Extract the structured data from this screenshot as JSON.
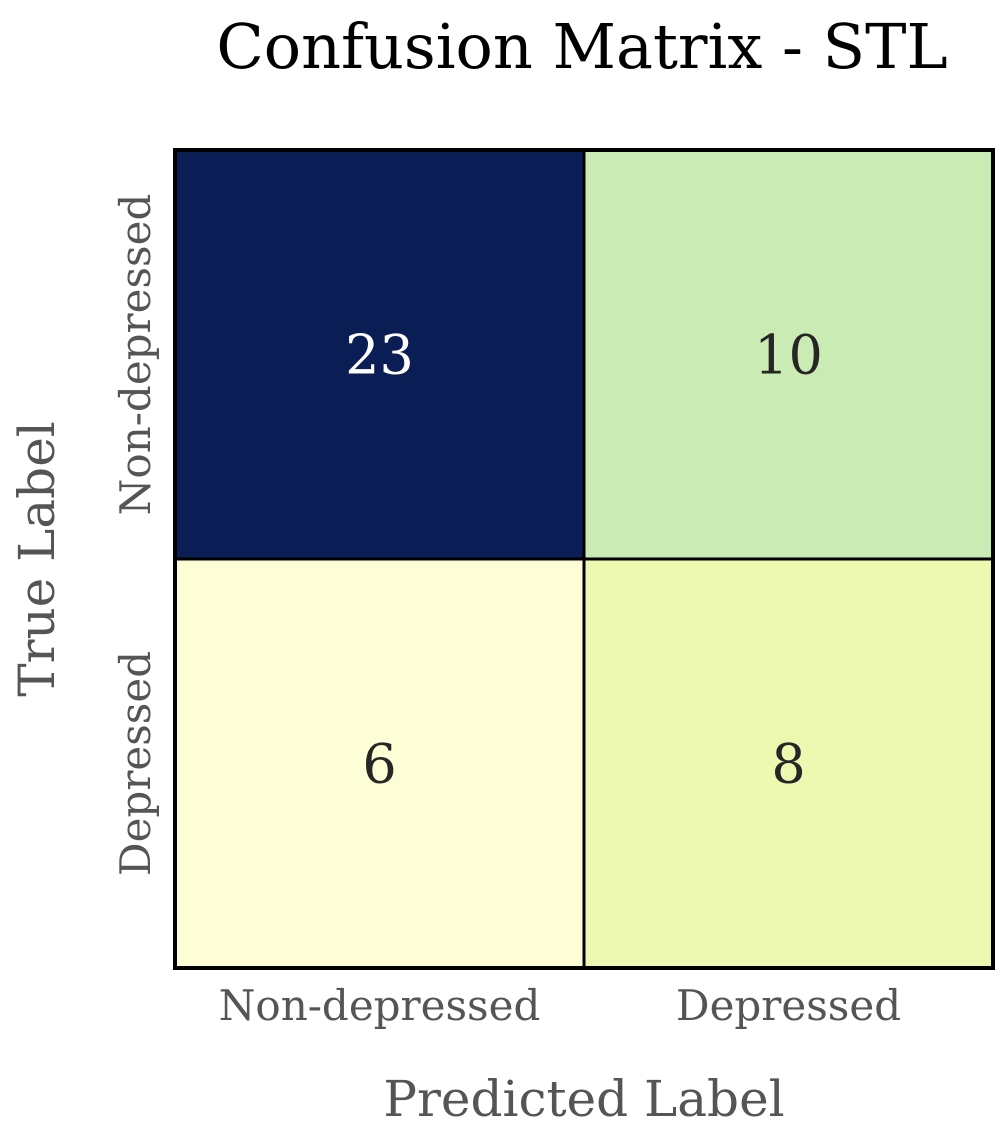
{
  "chart_data": {
    "type": "heatmap",
    "title": "Confusion Matrix - STL",
    "xlabel": "Predicted Label",
    "ylabel": "True Label",
    "x_categories": [
      "Non-depressed",
      "Depressed"
    ],
    "y_categories": [
      "Non-depressed",
      "Depressed"
    ],
    "values": [
      [
        23,
        10
      ],
      [
        6,
        8
      ]
    ],
    "colormap": "YlGnBu",
    "cell_colors": [
      [
        "#0b1d55",
        "#cbebb4"
      ],
      [
        "#fdfed6",
        "#edf8b1"
      ]
    ],
    "text_colors": [
      [
        "#ffffff",
        "#262626"
      ],
      [
        "#262626",
        "#262626"
      ]
    ],
    "colorbar": false,
    "grid": false
  }
}
